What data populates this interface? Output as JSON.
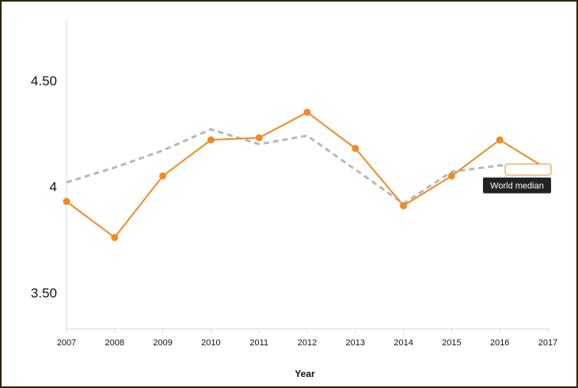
{
  "chart_data": {
    "type": "line",
    "xlabel": "Year",
    "ylabel": "",
    "title": "",
    "x": [
      "2007",
      "2008",
      "2009",
      "2010",
      "2011",
      "2012",
      "2013",
      "2014",
      "2015",
      "2016",
      "2017"
    ],
    "ylim": [
      3.33,
      4.79
    ],
    "yticks": [
      {
        "value": 4.5,
        "label": "4.50"
      },
      {
        "value": 4.0,
        "label": "4"
      },
      {
        "value": 3.5,
        "label": "3.50"
      }
    ],
    "series": [
      {
        "name": "",
        "color": "#f08a24",
        "style": "solid-markers",
        "values": [
          3.93,
          3.76,
          4.05,
          4.22,
          4.23,
          4.35,
          4.18,
          3.91,
          4.05,
          4.22,
          4.08
        ]
      },
      {
        "name": "World median",
        "color": "#b8b8b8",
        "style": "dashed",
        "values": [
          4.02,
          4.09,
          4.17,
          4.27,
          4.2,
          4.24,
          4.08,
          3.92,
          4.07,
          4.1,
          4.08
        ]
      }
    ],
    "tooltips": {
      "primary": "",
      "world": "World median"
    },
    "grid": false,
    "legend": "none"
  }
}
